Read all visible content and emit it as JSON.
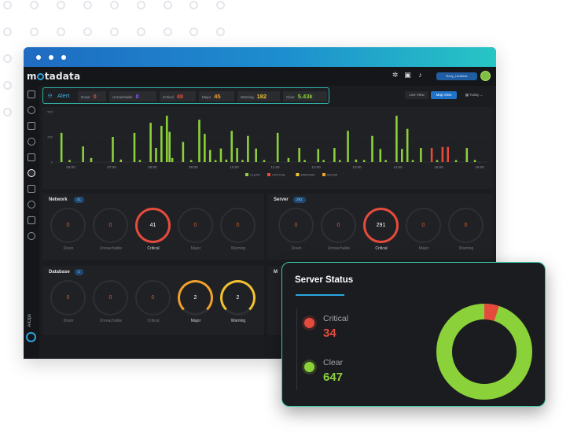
{
  "app": {
    "logo_text_pre": "m",
    "logo_text_post": "tadata"
  },
  "topbar": {
    "user_label": "Rony_Limitless"
  },
  "sidebar": {
    "items": [
      "dashboard-icon",
      "monitor-icon",
      "chart-icon",
      "report-icon",
      "topology-icon",
      "alert-icon",
      "network-icon",
      "explore-icon",
      "audit-icon",
      "settings-icon"
    ],
    "aiops_label": "AIOps"
  },
  "alert_bar": {
    "title": "Alert",
    "counts": [
      {
        "label": "Down",
        "value": "0",
        "color": "#e54b3c"
      },
      {
        "label": "Unreachable",
        "value": "0",
        "color": "#8b5cf6"
      },
      {
        "label": "Critical",
        "value": "48",
        "color": "#e54b3c"
      },
      {
        "label": "Major",
        "value": "45",
        "color": "#f0a12b"
      },
      {
        "label": "Warning",
        "value": "182",
        "color": "#f2c230"
      },
      {
        "label": "Clear",
        "value": "5.43k",
        "color": "#8bd13a"
      }
    ]
  },
  "view_controls": {
    "live_view": "Live View",
    "map_view": "Map View",
    "today": "Today"
  },
  "chart_data": {
    "type": "bar",
    "yticks": [
      0,
      250,
      500
    ],
    "ylim": [
      0,
      500
    ],
    "xticks": [
      "06:00",
      "07:00",
      "08:00",
      "09:00",
      "10:00",
      "11:00",
      "12:00",
      "13:00",
      "14:00",
      "15:00",
      "16:00"
    ],
    "legend": [
      "CLEAR",
      "CRITICAL",
      "WARNING",
      "MAJOR"
    ],
    "legend_colors": [
      "#8bd13a",
      "#e54b3c",
      "#f2c230",
      "#f0a12b"
    ],
    "bars": [
      {
        "x": 2,
        "v": 290,
        "s": "clear"
      },
      {
        "x": 5,
        "v": 20,
        "s": "clear"
      },
      {
        "x": 10,
        "v": 155,
        "s": "clear"
      },
      {
        "x": 13,
        "v": 40,
        "s": "clear"
      },
      {
        "x": 21,
        "v": 250,
        "s": "clear"
      },
      {
        "x": 24,
        "v": 25,
        "s": "clear"
      },
      {
        "x": 29,
        "v": 290,
        "s": "clear"
      },
      {
        "x": 31,
        "v": 20,
        "s": "clear"
      },
      {
        "x": 35,
        "v": 390,
        "s": "clear"
      },
      {
        "x": 37,
        "v": 140,
        "s": "clear"
      },
      {
        "x": 39,
        "v": 360,
        "s": "clear"
      },
      {
        "x": 41,
        "v": 460,
        "s": "clear"
      },
      {
        "x": 42,
        "v": 300,
        "s": "clear"
      },
      {
        "x": 43,
        "v": 40,
        "s": "clear"
      },
      {
        "x": 47,
        "v": 200,
        "s": "clear"
      },
      {
        "x": 50,
        "v": 20,
        "s": "clear"
      },
      {
        "x": 53,
        "v": 420,
        "s": "clear"
      },
      {
        "x": 55,
        "v": 280,
        "s": "clear"
      },
      {
        "x": 57,
        "v": 120,
        "s": "clear"
      },
      {
        "x": 59,
        "v": 20,
        "s": "clear"
      },
      {
        "x": 61,
        "v": 135,
        "s": "clear"
      },
      {
        "x": 63,
        "v": 25,
        "s": "clear"
      },
      {
        "x": 65,
        "v": 310,
        "s": "clear"
      },
      {
        "x": 67,
        "v": 140,
        "s": "clear"
      },
      {
        "x": 69,
        "v": 20,
        "s": "clear"
      },
      {
        "x": 71,
        "v": 260,
        "s": "clear"
      },
      {
        "x": 74,
        "v": 135,
        "s": "clear"
      },
      {
        "x": 77,
        "v": 20,
        "s": "clear"
      },
      {
        "x": 82,
        "v": 290,
        "s": "clear"
      },
      {
        "x": 86,
        "v": 40,
        "s": "clear"
      },
      {
        "x": 90,
        "v": 140,
        "s": "clear"
      },
      {
        "x": 92,
        "v": 20,
        "s": "clear"
      },
      {
        "x": 97,
        "v": 130,
        "s": "clear"
      },
      {
        "x": 99,
        "v": 20,
        "s": "clear"
      },
      {
        "x": 103,
        "v": 140,
        "s": "clear"
      },
      {
        "x": 105,
        "v": 20,
        "s": "clear"
      },
      {
        "x": 108,
        "v": 310,
        "s": "clear"
      },
      {
        "x": 111,
        "v": 25,
        "s": "clear"
      },
      {
        "x": 114,
        "v": 20,
        "s": "clear"
      },
      {
        "x": 117,
        "v": 260,
        "s": "clear"
      },
      {
        "x": 120,
        "v": 130,
        "s": "clear"
      },
      {
        "x": 122,
        "v": 20,
        "s": "clear"
      },
      {
        "x": 126,
        "v": 460,
        "s": "clear"
      },
      {
        "x": 128,
        "v": 130,
        "s": "clear"
      },
      {
        "x": 130,
        "v": 330,
        "s": "clear"
      },
      {
        "x": 132,
        "v": 20,
        "s": "clear"
      },
      {
        "x": 135,
        "v": 140,
        "s": "clear"
      },
      {
        "x": 139,
        "v": 140,
        "s": "red"
      },
      {
        "x": 141,
        "v": 20,
        "s": "clear"
      },
      {
        "x": 143,
        "v": 150,
        "s": "red"
      },
      {
        "x": 145,
        "v": 150,
        "s": "red"
      },
      {
        "x": 148,
        "v": 20,
        "s": "clear"
      },
      {
        "x": 152,
        "v": 140,
        "s": "clear"
      },
      {
        "x": 155,
        "v": 20,
        "s": "clear"
      }
    ]
  },
  "network": {
    "title": "Network",
    "count": "41",
    "gauges": [
      {
        "label": "Down",
        "value": "0"
      },
      {
        "label": "Unreachable",
        "value": "0"
      },
      {
        "label": "Critical",
        "value": "41"
      },
      {
        "label": "Major",
        "value": "0"
      },
      {
        "label": "Warning",
        "value": "0"
      }
    ]
  },
  "server": {
    "title": "Server",
    "count": "291",
    "gauges": [
      {
        "label": "Down",
        "value": "0"
      },
      {
        "label": "Unreachable",
        "value": "0"
      },
      {
        "label": "Critical",
        "value": "291"
      },
      {
        "label": "Major",
        "value": "0"
      },
      {
        "label": "Warning",
        "value": "0"
      }
    ]
  },
  "database": {
    "title": "Database",
    "count": "4",
    "gauges": [
      {
        "label": "Down",
        "value": "0"
      },
      {
        "label": "Unreachable",
        "value": "0"
      },
      {
        "label": "Critical",
        "value": "0"
      },
      {
        "label": "Major",
        "value": "2"
      },
      {
        "label": "Warning",
        "value": "2"
      }
    ]
  },
  "fourth_panel": {
    "title": "M"
  },
  "server_status": {
    "title": "Server Status",
    "items": [
      {
        "label": "Critical",
        "value": "34",
        "color": "#e54b3c"
      },
      {
        "label": "Clear",
        "value": "647",
        "color": "#8bd13a"
      }
    ]
  }
}
